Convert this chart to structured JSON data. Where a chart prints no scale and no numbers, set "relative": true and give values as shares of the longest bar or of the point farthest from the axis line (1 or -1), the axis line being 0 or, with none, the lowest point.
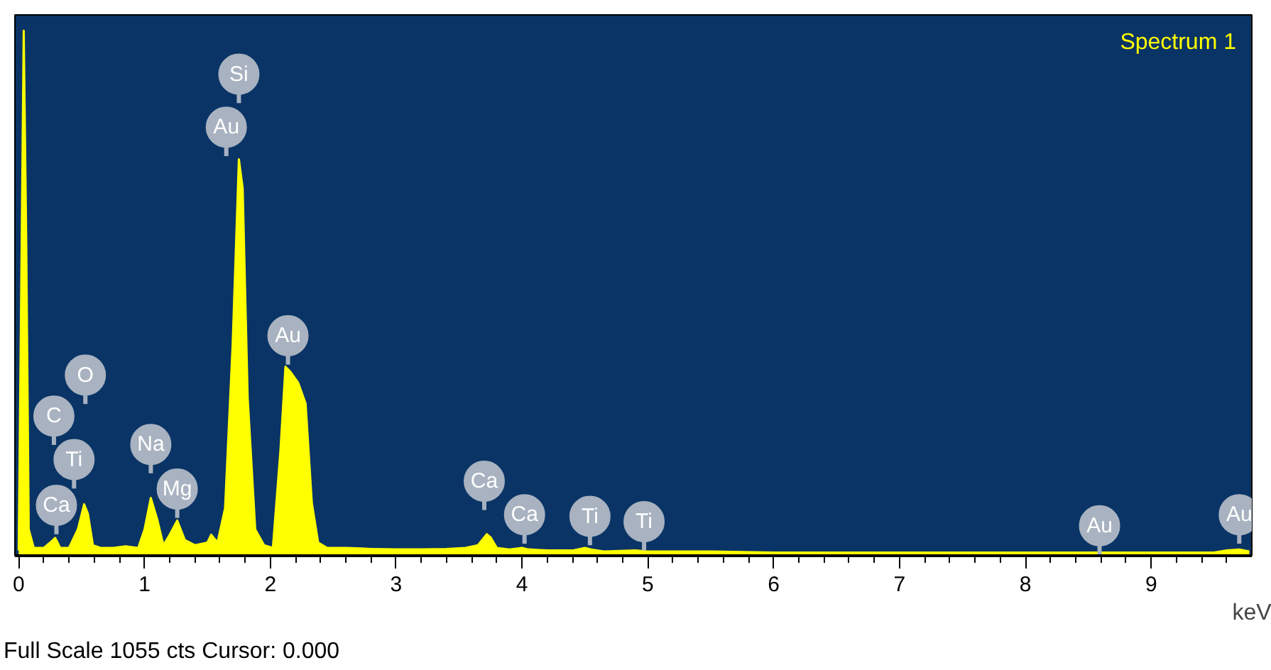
{
  "chart_data": {
    "type": "area",
    "title": "Spectrum 1",
    "xlabel": "keV",
    "relative": true,
    "grid": false,
    "xlim": [
      -0.03,
      9.8
    ],
    "xticks": [
      0,
      {
        "value": 0.2,
        "label": null
      },
      {
        "value": 0.4,
        "label": null
      },
      {
        "value": 0.6,
        "label": null
      },
      {
        "value": 0.8,
        "label": null
      },
      1,
      {
        "value": 1.2,
        "label": null
      },
      {
        "value": 1.4,
        "label": null
      },
      {
        "value": 1.6,
        "label": null
      },
      {
        "value": 1.8,
        "label": null
      },
      2,
      {
        "value": 2.2,
        "label": null
      },
      {
        "value": 2.4,
        "label": null
      },
      {
        "value": 2.6,
        "label": null
      },
      {
        "value": 2.8,
        "label": null
      },
      3,
      {
        "value": 3.2,
        "label": null
      },
      {
        "value": 3.4,
        "label": null
      },
      {
        "value": 3.6,
        "label": null
      },
      {
        "value": 3.8,
        "label": null
      },
      4,
      {
        "value": 4.2,
        "label": null
      },
      {
        "value": 4.4,
        "label": null
      },
      {
        "value": 4.6,
        "label": null
      },
      {
        "value": 4.8,
        "label": null
      },
      5,
      {
        "value": 5.2,
        "label": null
      },
      {
        "value": 5.4,
        "label": null
      },
      {
        "value": 5.6,
        "label": null
      },
      {
        "value": 5.8,
        "label": null
      },
      6,
      {
        "value": 6.2,
        "label": null
      },
      {
        "value": 6.4,
        "label": null
      },
      {
        "value": 6.6,
        "label": null
      },
      {
        "value": 6.8,
        "label": null
      },
      7,
      {
        "value": 7.2,
        "label": null
      },
      {
        "value": 7.4,
        "label": null
      },
      {
        "value": 7.6,
        "label": null
      },
      {
        "value": 7.8,
        "label": null
      },
      8,
      {
        "value": 8.2,
        "label": null
      },
      {
        "value": 8.4,
        "label": null
      },
      {
        "value": 8.6,
        "label": null
      },
      {
        "value": 8.8,
        "label": null
      },
      9,
      {
        "value": 9.2,
        "label": null
      },
      {
        "value": 9.4,
        "label": null
      },
      {
        "value": 9.6,
        "label": null
      }
    ],
    "series": [
      {
        "color": "#ffff00",
        "x": [
          0,
          0.02,
          0.04,
          0.06,
          0.08,
          0.12,
          0.2,
          0.25,
          0.29,
          0.33,
          0.4,
          0.47,
          0.52,
          0.55,
          0.59,
          0.65,
          0.75,
          0.85,
          0.95,
          1.0,
          1.05,
          1.1,
          1.15,
          1.2,
          1.26,
          1.32,
          1.4,
          1.5,
          1.53,
          1.58,
          1.64,
          1.7,
          1.75,
          1.78,
          1.82,
          1.88,
          1.95,
          2.02,
          2.08,
          2.12,
          2.16,
          2.22,
          2.28,
          2.33,
          2.38,
          2.45,
          2.6,
          2.8,
          3.0,
          3.2,
          3.4,
          3.55,
          3.65,
          3.72,
          3.75,
          3.8,
          3.9,
          4.0,
          4.05,
          4.2,
          4.4,
          4.5,
          4.55,
          4.65,
          4.9,
          5.0,
          5.5,
          6.0,
          6.5,
          7.0,
          7.5,
          8.0,
          8.5,
          9.0,
          9.5,
          9.6,
          9.7,
          9.78
        ],
        "values": [
          0.01,
          0.5,
          1.0,
          0.6,
          0.05,
          0.015,
          0.015,
          0.025,
          0.034,
          0.015,
          0.015,
          0.05,
          0.098,
          0.08,
          0.02,
          0.015,
          0.015,
          0.018,
          0.015,
          0.05,
          0.11,
          0.07,
          0.02,
          0.04,
          0.067,
          0.03,
          0.02,
          0.025,
          0.04,
          0.025,
          0.09,
          0.4,
          0.755,
          0.7,
          0.3,
          0.05,
          0.02,
          0.015,
          0.2,
          0.36,
          0.35,
          0.33,
          0.29,
          0.1,
          0.025,
          0.015,
          0.015,
          0.013,
          0.012,
          0.012,
          0.013,
          0.015,
          0.02,
          0.041,
          0.035,
          0.015,
          0.012,
          0.015,
          0.012,
          0.01,
          0.01,
          0.015,
          0.012,
          0.008,
          0.01,
          0.008,
          0.008,
          0.006,
          0.006,
          0.006,
          0.006,
          0.006,
          0.006,
          0.006,
          0.006,
          0.01,
          0.012,
          0.008
        ]
      }
    ],
    "annotations": [
      {
        "text": "Si",
        "x": 1.75,
        "y": 0.917
      },
      {
        "text": "Au",
        "x": 1.65,
        "y": 0.816
      },
      {
        "text": "Au",
        "x": 2.14,
        "y": 0.419
      },
      {
        "text": "O",
        "x": 0.53,
        "y": 0.344
      },
      {
        "text": "C",
        "x": 0.28,
        "y": 0.266
      },
      {
        "text": "Ti",
        "x": 0.44,
        "y": 0.183
      },
      {
        "text": "Ca",
        "x": 0.3,
        "y": 0.096
      },
      {
        "text": "Na",
        "x": 1.05,
        "y": 0.212
      },
      {
        "text": "Mg",
        "x": 1.26,
        "y": 0.127
      },
      {
        "text": "Ca",
        "x": 3.7,
        "y": 0.142
      },
      {
        "text": "Ca",
        "x": 4.02,
        "y": 0.078
      },
      {
        "text": "Ti",
        "x": 4.54,
        "y": 0.075
      },
      {
        "text": "Ti",
        "x": 4.97,
        "y": 0.065
      },
      {
        "text": "Au",
        "x": 8.59,
        "y": 0.057
      },
      {
        "text": "Au",
        "x": 9.7,
        "y": 0.078
      },
      "Full Scale 1055 cts Cursor: 0.000"
    ]
  }
}
